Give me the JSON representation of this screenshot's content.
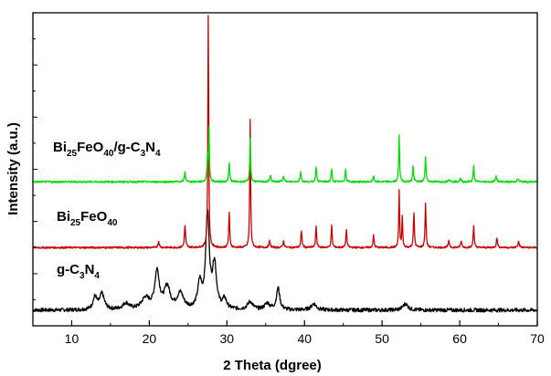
{
  "chart_data": {
    "type": "line",
    "xlabel": "2 Theta (dgree)",
    "ylabel": "Intensity (a.u.)",
    "xlim": [
      5,
      70
    ],
    "x_ticks": [
      "10",
      "20",
      "30",
      "40",
      "50",
      "60",
      "70"
    ],
    "grid": false,
    "series": [
      {
        "name": "g-C3N4",
        "label": {
          "main": "g-C",
          "sub1": "3",
          "mid": "N",
          "sub2": "4"
        },
        "color": "#000000",
        "baseline": 0.05,
        "noise": 0.012,
        "peaks": [
          {
            "x": 13.0,
            "h": 0.04,
            "w": 0.6
          },
          {
            "x": 13.9,
            "h": 0.05,
            "w": 0.7
          },
          {
            "x": 17.0,
            "h": 0.02,
            "w": 1.0
          },
          {
            "x": 19.5,
            "h": 0.035,
            "w": 1.2
          },
          {
            "x": 21.0,
            "h": 0.12,
            "w": 0.7
          },
          {
            "x": 22.3,
            "h": 0.07,
            "w": 0.9
          },
          {
            "x": 24.0,
            "h": 0.05,
            "w": 1.0
          },
          {
            "x": 26.5,
            "h": 0.08,
            "w": 0.6
          },
          {
            "x": 27.5,
            "h": 0.3,
            "w": 0.55
          },
          {
            "x": 28.4,
            "h": 0.14,
            "w": 0.6
          },
          {
            "x": 29.7,
            "h": 0.03,
            "w": 0.6
          },
          {
            "x": 33.0,
            "h": 0.025,
            "w": 0.8
          },
          {
            "x": 35.2,
            "h": 0.02,
            "w": 0.8
          },
          {
            "x": 36.6,
            "h": 0.07,
            "w": 0.5
          },
          {
            "x": 41.2,
            "h": 0.02,
            "w": 0.8
          },
          {
            "x": 53.0,
            "h": 0.02,
            "w": 0.8
          }
        ]
      },
      {
        "name": "Bi25FeO40",
        "label": {
          "main": "Bi",
          "sub1": "25",
          "mid": "FeO",
          "sub2": "40"
        },
        "color": "#cc0000",
        "baseline": 0.25,
        "noise": 0.006,
        "peaks": [
          {
            "x": 21.2,
            "h": 0.02,
            "w": 0.2
          },
          {
            "x": 24.6,
            "h": 0.07,
            "w": 0.18
          },
          {
            "x": 27.6,
            "h": 0.74,
            "w": 0.13
          },
          {
            "x": 30.3,
            "h": 0.11,
            "w": 0.15
          },
          {
            "x": 33.0,
            "h": 0.41,
            "w": 0.13
          },
          {
            "x": 35.5,
            "h": 0.02,
            "w": 0.2
          },
          {
            "x": 37.3,
            "h": 0.02,
            "w": 0.2
          },
          {
            "x": 39.6,
            "h": 0.05,
            "w": 0.18
          },
          {
            "x": 41.5,
            "h": 0.07,
            "w": 0.15
          },
          {
            "x": 43.5,
            "h": 0.07,
            "w": 0.15
          },
          {
            "x": 45.4,
            "h": 0.06,
            "w": 0.15
          },
          {
            "x": 48.9,
            "h": 0.04,
            "w": 0.15
          },
          {
            "x": 52.2,
            "h": 0.18,
            "w": 0.13
          },
          {
            "x": 52.6,
            "h": 0.1,
            "w": 0.12
          },
          {
            "x": 54.1,
            "h": 0.11,
            "w": 0.15
          },
          {
            "x": 55.6,
            "h": 0.14,
            "w": 0.15
          },
          {
            "x": 58.6,
            "h": 0.02,
            "w": 0.2
          },
          {
            "x": 60.2,
            "h": 0.02,
            "w": 0.2
          },
          {
            "x": 61.8,
            "h": 0.07,
            "w": 0.15
          },
          {
            "x": 64.8,
            "h": 0.03,
            "w": 0.18
          },
          {
            "x": 67.6,
            "h": 0.02,
            "w": 0.2
          }
        ]
      },
      {
        "name": "Bi25FeO40/g-C3N4",
        "label": {
          "main": "Bi",
          "sub1": "25",
          "mid": "FeO",
          "sub2": "40",
          "tail": "/g-C",
          "sub3": "3",
          "tail2": "N",
          "sub4": "4"
        },
        "color": "#00dd00",
        "baseline": 0.46,
        "noise": 0.006,
        "peaks": [
          {
            "x": 24.6,
            "h": 0.03,
            "w": 0.18
          },
          {
            "x": 27.5,
            "h": 0.08,
            "w": 0.15
          },
          {
            "x": 27.7,
            "h": 0.17,
            "w": 0.12
          },
          {
            "x": 30.3,
            "h": 0.06,
            "w": 0.15
          },
          {
            "x": 33.0,
            "h": 0.14,
            "w": 0.13
          },
          {
            "x": 35.6,
            "h": 0.02,
            "w": 0.2
          },
          {
            "x": 37.3,
            "h": 0.02,
            "w": 0.2
          },
          {
            "x": 39.5,
            "h": 0.03,
            "w": 0.18
          },
          {
            "x": 41.5,
            "h": 0.05,
            "w": 0.15
          },
          {
            "x": 43.5,
            "h": 0.04,
            "w": 0.15
          },
          {
            "x": 45.3,
            "h": 0.04,
            "w": 0.15
          },
          {
            "x": 48.9,
            "h": 0.02,
            "w": 0.15
          },
          {
            "x": 52.2,
            "h": 0.15,
            "w": 0.13
          },
          {
            "x": 54.0,
            "h": 0.05,
            "w": 0.15
          },
          {
            "x": 55.6,
            "h": 0.08,
            "w": 0.15
          },
          {
            "x": 58.6,
            "h": 0.01,
            "w": 0.2
          },
          {
            "x": 60.1,
            "h": 0.01,
            "w": 0.2
          },
          {
            "x": 61.8,
            "h": 0.05,
            "w": 0.15
          },
          {
            "x": 64.7,
            "h": 0.02,
            "w": 0.18
          },
          {
            "x": 67.5,
            "h": 0.01,
            "w": 0.2
          }
        ]
      }
    ]
  }
}
